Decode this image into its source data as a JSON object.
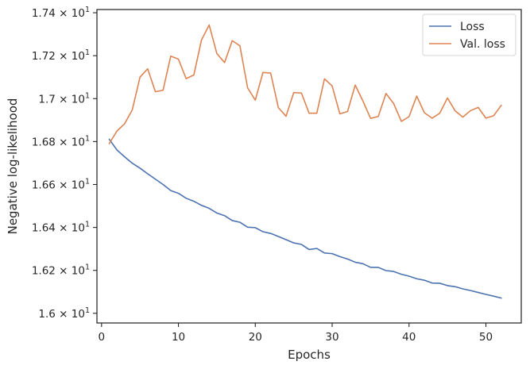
{
  "chart_data": {
    "type": "line",
    "title": "",
    "xlabel": "Epochs",
    "ylabel": "Negative log-likelihood",
    "xlim": [
      -0.6,
      54.6
    ],
    "ylim": [
      15.955,
      17.415
    ],
    "x_ticks": [
      0,
      10,
      20,
      30,
      40,
      50
    ],
    "x_tick_labels": [
      "0",
      "10",
      "20",
      "30",
      "40",
      "50"
    ],
    "y_ticks": [
      16.0,
      16.2,
      16.4,
      16.6,
      16.8,
      17.0,
      17.2,
      17.4
    ],
    "y_tick_labels": [
      {
        "mantissa": "1.6",
        "sep": " × ",
        "base": "10",
        "exp": "1"
      },
      {
        "mantissa": "1.62",
        "sep": " × ",
        "base": "10",
        "exp": "1"
      },
      {
        "mantissa": "1.64",
        "sep": " × ",
        "base": "10",
        "exp": "1"
      },
      {
        "mantissa": "1.66",
        "sep": " × ",
        "base": "10",
        "exp": "1"
      },
      {
        "mantissa": "1.68",
        "sep": " × ",
        "base": "10",
        "exp": "1"
      },
      {
        "mantissa": "1.7",
        "sep": " × ",
        "base": "10",
        "exp": "1"
      },
      {
        "mantissa": "1.72",
        "sep": " × ",
        "base": "10",
        "exp": "1"
      },
      {
        "mantissa": "1.74",
        "sep": " × ",
        "base": "10",
        "exp": "1"
      }
    ],
    "grid": false,
    "legend_position": "top-right",
    "x": [
      1,
      2,
      3,
      4,
      5,
      6,
      7,
      8,
      9,
      10,
      11,
      12,
      13,
      14,
      15,
      16,
      17,
      18,
      19,
      20,
      21,
      22,
      23,
      24,
      25,
      26,
      27,
      28,
      29,
      30,
      31,
      32,
      33,
      34,
      35,
      36,
      37,
      38,
      39,
      40,
      41,
      42,
      43,
      44,
      45,
      46,
      47,
      48,
      49,
      50,
      51,
      52
    ],
    "series": [
      {
        "name": "Loss",
        "color": "#4c72b0",
        "values": [
          16.811,
          16.761,
          16.729,
          16.699,
          16.676,
          16.65,
          16.625,
          16.6,
          16.572,
          16.559,
          16.536,
          16.522,
          16.503,
          16.489,
          16.467,
          16.455,
          16.432,
          16.424,
          16.401,
          16.399,
          16.38,
          16.372,
          16.358,
          16.343,
          16.328,
          16.321,
          16.297,
          16.302,
          16.281,
          16.278,
          16.264,
          16.253,
          16.238,
          16.231,
          16.214,
          16.214,
          16.199,
          16.195,
          16.182,
          16.173,
          16.161,
          16.154,
          16.141,
          16.14,
          16.129,
          16.124,
          16.114,
          16.106,
          16.097,
          16.088,
          16.08,
          16.071
        ]
      },
      {
        "name": "Val. loss",
        "color": "#dd8452",
        "values": [
          16.79,
          16.849,
          16.883,
          16.948,
          17.1,
          17.139,
          17.032,
          17.039,
          17.198,
          17.184,
          17.093,
          17.11,
          17.273,
          17.343,
          17.21,
          17.168,
          17.27,
          17.246,
          17.05,
          16.993,
          17.122,
          17.119,
          16.958,
          16.918,
          17.028,
          17.026,
          16.932,
          16.932,
          17.092,
          17.059,
          16.929,
          16.94,
          17.063,
          16.989,
          16.908,
          16.917,
          17.024,
          16.977,
          16.894,
          16.916,
          17.012,
          16.934,
          16.909,
          16.932,
          17.003,
          16.943,
          16.914,
          16.944,
          16.959,
          16.909,
          16.92,
          16.969
        ]
      }
    ]
  }
}
